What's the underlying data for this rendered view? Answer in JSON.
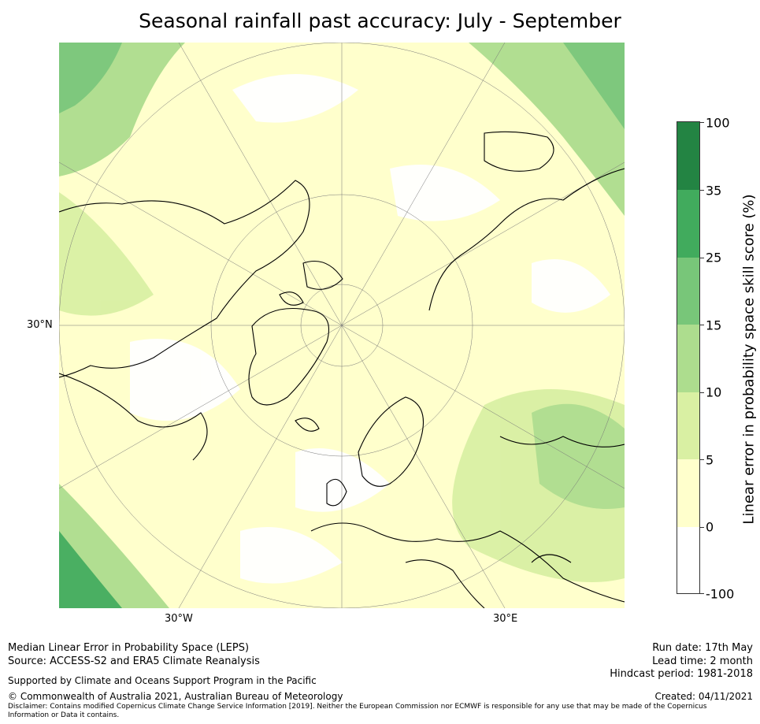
{
  "title": "Seasonal rainfall past accuracy: July - September",
  "map": {
    "lat_label": "30°N",
    "lon_labels": [
      "30°W",
      "30°E"
    ]
  },
  "colorbar": {
    "label": "Linear error in probability space skill score (%)",
    "ticks": [
      "100",
      "35",
      "25",
      "15",
      "10",
      "5",
      "0",
      "-100"
    ],
    "bins": [
      {
        "range": "35 to 100",
        "color": "#238443"
      },
      {
        "range": "25 to 35",
        "color": "#41ab5d"
      },
      {
        "range": "15 to 25",
        "color": "#78c679"
      },
      {
        "range": "10 to 15",
        "color": "#addd8e"
      },
      {
        "range": "5 to 10",
        "color": "#d9f0a3"
      },
      {
        "range": "0 to 5",
        "color": "#ffffcc"
      },
      {
        "range": "-100 to 0",
        "color": "#ffffff"
      }
    ]
  },
  "footer": {
    "method": "Median Linear Error in Probability Space (LEPS)",
    "source": "Source: ACCESS-S2 and ERA5 Climate Reanalysis",
    "support": "Supported by Climate and Oceans Support Program in the Pacific",
    "copyright": "© Commonwealth of Australia 2021, Australian Bureau of Meteorology",
    "disclaimer": "Disclaimer: Contains modified Copernicus Climate Change Service Information [2019]. Neither the European Commission nor ECMWF is responsible for any use that may be made of the Copernicus Information or Data it contains.",
    "run_date": "Run date: 17th May",
    "lead_time": "Lead time: 2 month",
    "hindcast": "Hindcast period: 1981-2018",
    "created": "Created: 04/11/2021"
  }
}
